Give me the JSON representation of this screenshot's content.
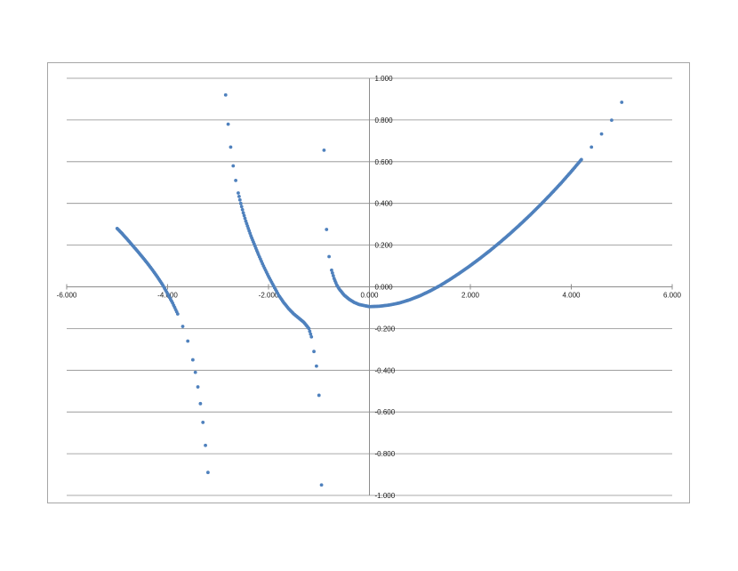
{
  "chart_data": {
    "type": "scatter",
    "title": "",
    "xlabel": "",
    "ylabel": "",
    "xlim": [
      -6,
      6
    ],
    "ylim": [
      -1,
      1
    ],
    "x_ticks": [
      "-6.000",
      "-4.000",
      "-2.000",
      "0.000",
      "2.000",
      "4.000",
      "6.000"
    ],
    "y_ticks": [
      "-1.000",
      "-0.800",
      "-0.600",
      "-0.400",
      "-0.200",
      "0.000",
      "0.200",
      "0.400",
      "0.600",
      "0.800",
      "1.000"
    ],
    "grid": "horizontal major gridlines",
    "legend": "none",
    "marker_color": "#4f81bd",
    "series": [
      {
        "points": [
          [
            -5.0,
            0.28
          ],
          [
            -4.9,
            0.255
          ],
          [
            -4.8,
            0.228
          ],
          [
            -4.7,
            0.2
          ],
          [
            -4.6,
            0.172
          ],
          [
            -4.5,
            0.143
          ],
          [
            -4.4,
            0.113
          ],
          [
            -4.3,
            0.081
          ],
          [
            -4.2,
            0.047
          ],
          [
            -4.1,
            0.01
          ],
          [
            -4.0,
            -0.033
          ],
          [
            -3.9,
            -0.078
          ],
          [
            -3.8,
            -0.13
          ],
          [
            -3.7,
            -0.19
          ],
          [
            -3.6,
            -0.26
          ],
          [
            -3.5,
            -0.35
          ],
          [
            -3.45,
            -0.41
          ],
          [
            -3.4,
            -0.48
          ],
          [
            -3.35,
            -0.56
          ],
          [
            -3.3,
            -0.65
          ],
          [
            -3.25,
            -0.76
          ],
          [
            -3.2,
            -0.89
          ],
          [
            -2.85,
            0.92
          ],
          [
            -2.8,
            0.78
          ],
          [
            -2.75,
            0.67
          ],
          [
            -2.7,
            0.58
          ],
          [
            -2.65,
            0.51
          ],
          [
            -2.6,
            0.45
          ],
          [
            -2.55,
            0.4
          ],
          [
            -2.5,
            0.355
          ],
          [
            -2.45,
            0.315
          ],
          [
            -2.4,
            0.28
          ],
          [
            -2.35,
            0.245
          ],
          [
            -2.3,
            0.215
          ],
          [
            -2.25,
            0.185
          ],
          [
            -2.2,
            0.155
          ],
          [
            -2.1,
            0.1
          ],
          [
            -2.0,
            0.05
          ],
          [
            -1.9,
            0.005
          ],
          [
            -1.8,
            -0.04
          ],
          [
            -1.7,
            -0.075
          ],
          [
            -1.6,
            -0.105
          ],
          [
            -1.5,
            -0.13
          ],
          [
            -1.4,
            -0.15
          ],
          [
            -1.3,
            -0.17
          ],
          [
            -1.2,
            -0.2
          ],
          [
            -1.15,
            -0.24
          ],
          [
            -1.1,
            -0.31
          ],
          [
            -1.05,
            -0.38
          ],
          [
            -1.0,
            -0.52
          ],
          [
            -0.95,
            -0.95
          ],
          [
            -0.9,
            0.655
          ],
          [
            -0.85,
            0.275
          ],
          [
            -0.8,
            0.145
          ],
          [
            -0.75,
            0.08
          ],
          [
            -0.7,
            0.04
          ],
          [
            -0.65,
            0.01
          ],
          [
            -0.6,
            -0.01
          ],
          [
            -0.5,
            -0.04
          ],
          [
            -0.4,
            -0.06
          ],
          [
            -0.3,
            -0.075
          ],
          [
            -0.2,
            -0.085
          ],
          [
            -0.1,
            -0.09
          ],
          [
            0.0,
            -0.095
          ],
          [
            0.2,
            -0.093
          ],
          [
            0.4,
            -0.087
          ],
          [
            0.6,
            -0.077
          ],
          [
            0.8,
            -0.062
          ],
          [
            1.0,
            -0.043
          ],
          [
            1.2,
            -0.02
          ],
          [
            1.4,
            0.006
          ],
          [
            1.6,
            0.036
          ],
          [
            1.8,
            0.068
          ],
          [
            2.0,
            0.102
          ],
          [
            2.2,
            0.138
          ],
          [
            2.4,
            0.176
          ],
          [
            2.6,
            0.216
          ],
          [
            2.8,
            0.258
          ],
          [
            3.0,
            0.302
          ],
          [
            3.2,
            0.348
          ],
          [
            3.4,
            0.396
          ],
          [
            3.6,
            0.446
          ],
          [
            3.8,
            0.498
          ],
          [
            4.0,
            0.553
          ],
          [
            4.2,
            0.61
          ],
          [
            4.4,
            0.67
          ],
          [
            4.6,
            0.733
          ],
          [
            4.8,
            0.799
          ],
          [
            5.0,
            0.885
          ]
        ]
      }
    ]
  }
}
